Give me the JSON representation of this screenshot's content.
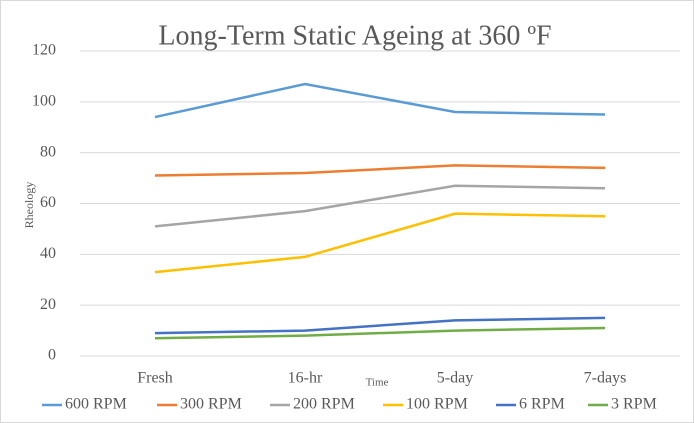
{
  "chart_data": {
    "type": "line",
    "title": "Long-Term Static Ageing at 360 ºF",
    "x_label": "Time",
    "y_label": "Rheology",
    "categories": [
      "Fresh",
      "16-hr",
      "5-day",
      "7-days"
    ],
    "series": [
      {
        "name": "600 RPM",
        "color": "#5b9bd5",
        "values": [
          94,
          107,
          96,
          95
        ]
      },
      {
        "name": "300 RPM",
        "color": "#ed7d31",
        "values": [
          71,
          72,
          75,
          74
        ]
      },
      {
        "name": "200 RPM",
        "color": "#a5a5a5",
        "values": [
          51,
          57,
          67,
          66
        ]
      },
      {
        "name": "100 RPM",
        "color": "#ffc000",
        "values": [
          33,
          39,
          56,
          55
        ]
      },
      {
        "name": "6 RPM",
        "color": "#4472c4",
        "values": [
          9,
          10,
          14,
          15
        ]
      },
      {
        "name": "3 RPM",
        "color": "#70ad47",
        "values": [
          7,
          8,
          10,
          11
        ]
      }
    ],
    "ylim": [
      0,
      120
    ],
    "yticks": [
      0,
      20,
      40,
      60,
      80,
      100,
      120
    ],
    "grid": true,
    "legend": "bottom"
  }
}
